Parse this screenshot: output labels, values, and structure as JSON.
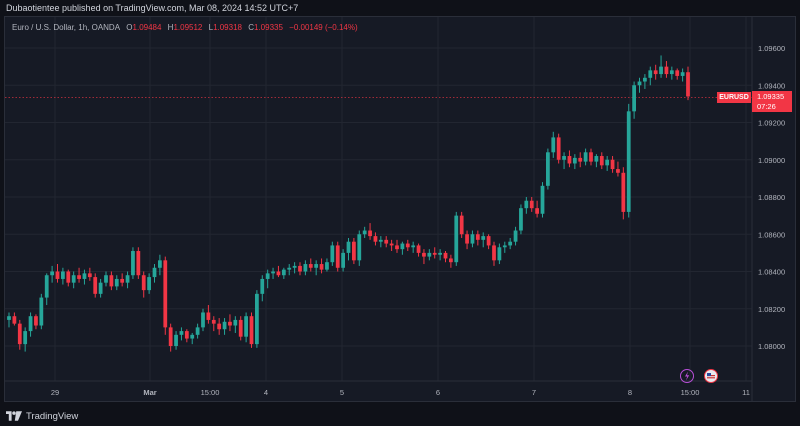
{
  "header": {
    "published_text": "Dubaotientee published on TradingView.com, Mar 08, 2024 14:52 UTC+7"
  },
  "legend": {
    "symbol_text": "Euro / U.S. Dollar, 1h, OANDA",
    "open_label": "O",
    "open_value": "1.09484",
    "high_label": "H",
    "high_value": "1.09512",
    "low_label": "L",
    "low_value": "1.09318",
    "close_label": "C",
    "close_value": "1.09335",
    "change_value": "−0.00149 (−0.14%)"
  },
  "price_tag": {
    "symbol": "EURUSD",
    "price": "1.09335",
    "countdown": "07:26"
  },
  "footer": {
    "brand": "TradingView"
  },
  "colors": {
    "up": "#26a69a",
    "down": "#f23645",
    "grid": "#222631",
    "axis_text": "#b2b5be"
  },
  "icons": [
    "lightning-event-icon",
    "us-flag-event-icon",
    "tradingview-logo-icon"
  ],
  "chart_data": {
    "type": "candlestick",
    "y_ticks": [
      "1.09600",
      "1.09400",
      "1.09200",
      "1.09000",
      "1.08800",
      "1.08600",
      "1.08400",
      "1.08200",
      "1.08000"
    ],
    "ylim": [
      1.079,
      1.097
    ],
    "current_price": 1.09335,
    "x_ticks": [
      "29",
      "Mar",
      "15:00",
      "4",
      "5",
      "6",
      "7",
      "8",
      "15:00",
      "11"
    ],
    "candles": [
      [
        1.0814,
        1.0818,
        1.081,
        1.0816
      ],
      [
        1.0816,
        1.0818,
        1.0811,
        1.0812
      ],
      [
        1.0812,
        1.0814,
        1.0798,
        1.0801
      ],
      [
        1.0801,
        1.081,
        1.0797,
        1.0808
      ],
      [
        1.0808,
        1.0818,
        1.0805,
        1.0816
      ],
      [
        1.0816,
        1.0817,
        1.0809,
        1.0811
      ],
      [
        1.0811,
        1.0828,
        1.0809,
        1.0826
      ],
      [
        1.0826,
        1.0839,
        1.0822,
        1.0838
      ],
      [
        1.0838,
        1.0843,
        1.0834,
        1.084
      ],
      [
        1.084,
        1.0844,
        1.0834,
        1.0836
      ],
      [
        1.0836,
        1.0842,
        1.0833,
        1.084
      ],
      [
        1.084,
        1.0841,
        1.0832,
        1.0834
      ],
      [
        1.0834,
        1.084,
        1.0831,
        1.0838
      ],
      [
        1.0838,
        1.0842,
        1.0834,
        1.0836
      ],
      [
        1.0836,
        1.0841,
        1.0833,
        1.0839
      ],
      [
        1.0839,
        1.0842,
        1.0835,
        1.0837
      ],
      [
        1.0837,
        1.0839,
        1.0826,
        1.0828
      ],
      [
        1.0828,
        1.0836,
        1.0826,
        1.0834
      ],
      [
        1.0834,
        1.084,
        1.0832,
        1.0838
      ],
      [
        1.0838,
        1.084,
        1.083,
        1.0832
      ],
      [
        1.0832,
        1.0838,
        1.083,
        1.0836
      ],
      [
        1.0836,
        1.0839,
        1.0832,
        1.0834
      ],
      [
        1.0834,
        1.084,
        1.0831,
        1.0838
      ],
      [
        1.0838,
        1.0853,
        1.0836,
        1.0851
      ],
      [
        1.0851,
        1.0853,
        1.0836,
        1.0838
      ],
      [
        1.0838,
        1.084,
        1.0826,
        1.083
      ],
      [
        1.083,
        1.0839,
        1.0828,
        1.0837
      ],
      [
        1.0837,
        1.0844,
        1.0834,
        1.0842
      ],
      [
        1.0842,
        1.0849,
        1.0838,
        1.0846
      ],
      [
        1.0846,
        1.0848,
        1.0806,
        1.081
      ],
      [
        1.081,
        1.0812,
        1.0797,
        1.08
      ],
      [
        1.08,
        1.0808,
        1.0798,
        1.0806
      ],
      [
        1.0806,
        1.081,
        1.0803,
        1.0808
      ],
      [
        1.0808,
        1.0809,
        1.0802,
        1.0804
      ],
      [
        1.0804,
        1.0807,
        1.0801,
        1.0806
      ],
      [
        1.0806,
        1.0812,
        1.0804,
        1.081
      ],
      [
        1.081,
        1.082,
        1.0808,
        1.0818
      ],
      [
        1.0818,
        1.0822,
        1.0812,
        1.0814
      ],
      [
        1.0814,
        1.0816,
        1.0808,
        1.0812
      ],
      [
        1.0812,
        1.0815,
        1.0806,
        1.0809
      ],
      [
        1.0809,
        1.0815,
        1.0806,
        1.0813
      ],
      [
        1.0813,
        1.0817,
        1.0808,
        1.0811
      ],
      [
        1.0811,
        1.0816,
        1.0807,
        1.0814
      ],
      [
        1.0814,
        1.0816,
        1.0803,
        1.0805
      ],
      [
        1.0805,
        1.0818,
        1.0802,
        1.0816
      ],
      [
        1.0816,
        1.0818,
        1.0799,
        1.0801
      ],
      [
        1.0801,
        1.083,
        1.0799,
        1.0828
      ],
      [
        1.0828,
        1.0838,
        1.0824,
        1.0836
      ],
      [
        1.0836,
        1.0841,
        1.0831,
        1.0839
      ],
      [
        1.0839,
        1.0842,
        1.0836,
        1.084
      ],
      [
        1.084,
        1.0843,
        1.0837,
        1.0838
      ],
      [
        1.0838,
        1.0842,
        1.0836,
        1.0841
      ],
      [
        1.0841,
        1.0844,
        1.0838,
        1.0842
      ],
      [
        1.0842,
        1.0845,
        1.0839,
        1.0843
      ],
      [
        1.0843,
        1.0845,
        1.0838,
        1.084
      ],
      [
        1.084,
        1.0846,
        1.0838,
        1.0844
      ],
      [
        1.0844,
        1.0847,
        1.084,
        1.0842
      ],
      [
        1.0842,
        1.0846,
        1.0838,
        1.0844
      ],
      [
        1.0844,
        1.0847,
        1.0839,
        1.0841
      ],
      [
        1.0841,
        1.0847,
        1.084,
        1.0845
      ],
      [
        1.0845,
        1.0856,
        1.0843,
        1.0854
      ],
      [
        1.0854,
        1.0856,
        1.084,
        1.0842
      ],
      [
        1.0842,
        1.0852,
        1.084,
        1.085
      ],
      [
        1.085,
        1.0858,
        1.0846,
        1.0856
      ],
      [
        1.0856,
        1.0858,
        1.0844,
        1.0846
      ],
      [
        1.0846,
        1.0862,
        1.0843,
        1.086
      ],
      [
        1.086,
        1.0864,
        1.0858,
        1.0862
      ],
      [
        1.0862,
        1.0866,
        1.0857,
        1.0859
      ],
      [
        1.0859,
        1.0861,
        1.0854,
        1.0856
      ],
      [
        1.0856,
        1.0859,
        1.0853,
        1.0857
      ],
      [
        1.0857,
        1.0859,
        1.0853,
        1.0855
      ],
      [
        1.0855,
        1.0857,
        1.0851,
        1.0854
      ],
      [
        1.0854,
        1.0857,
        1.085,
        1.0852
      ],
      [
        1.0852,
        1.0856,
        1.0849,
        1.0855
      ],
      [
        1.0855,
        1.0857,
        1.0851,
        1.0853
      ],
      [
        1.0853,
        1.0856,
        1.085,
        1.0854
      ],
      [
        1.0854,
        1.0855,
        1.0848,
        1.085
      ],
      [
        1.085,
        1.0852,
        1.0844,
        1.0848
      ],
      [
        1.0848,
        1.0852,
        1.0846,
        1.085
      ],
      [
        1.085,
        1.0853,
        1.0847,
        1.0849
      ],
      [
        1.0849,
        1.0852,
        1.0846,
        1.085
      ],
      [
        1.085,
        1.0851,
        1.0845,
        1.0847
      ],
      [
        1.0847,
        1.0849,
        1.0842,
        1.0845
      ],
      [
        1.0845,
        1.0872,
        1.0843,
        1.087
      ],
      [
        1.087,
        1.0872,
        1.0858,
        1.086
      ],
      [
        1.086,
        1.0862,
        1.0852,
        1.0855
      ],
      [
        1.0855,
        1.0862,
        1.0853,
        1.086
      ],
      [
        1.086,
        1.0862,
        1.0854,
        1.0857
      ],
      [
        1.0857,
        1.0861,
        1.0853,
        1.0859
      ],
      [
        1.0859,
        1.086,
        1.0852,
        1.0854
      ],
      [
        1.0854,
        1.0856,
        1.0843,
        1.0846
      ],
      [
        1.0846,
        1.0855,
        1.0844,
        1.0853
      ],
      [
        1.0853,
        1.0856,
        1.085,
        1.0854
      ],
      [
        1.0854,
        1.0858,
        1.0852,
        1.0856
      ],
      [
        1.0856,
        1.0864,
        1.0854,
        1.0862
      ],
      [
        1.0862,
        1.0876,
        1.086,
        1.0874
      ],
      [
        1.0874,
        1.088,
        1.0871,
        1.0878
      ],
      [
        1.0878,
        1.088,
        1.0872,
        1.0874
      ],
      [
        1.0874,
        1.0878,
        1.0869,
        1.0871
      ],
      [
        1.0871,
        1.0888,
        1.0869,
        1.0886
      ],
      [
        1.0886,
        1.0906,
        1.0884,
        1.0904
      ],
      [
        1.0904,
        1.0915,
        1.0901,
        1.0912
      ],
      [
        1.0912,
        1.0914,
        1.0898,
        1.09
      ],
      [
        1.09,
        1.0904,
        1.0895,
        1.0902
      ],
      [
        1.0902,
        1.0905,
        1.0896,
        1.0898
      ],
      [
        1.0898,
        1.0903,
        1.0895,
        1.0901
      ],
      [
        1.0901,
        1.0904,
        1.0896,
        1.0899
      ],
      [
        1.0899,
        1.0906,
        1.0897,
        1.0904
      ],
      [
        1.0904,
        1.0906,
        1.0897,
        1.0899
      ],
      [
        1.0899,
        1.0903,
        1.0896,
        1.0902
      ],
      [
        1.0902,
        1.0904,
        1.0895,
        1.0897
      ],
      [
        1.0897,
        1.0902,
        1.0894,
        1.09
      ],
      [
        1.09,
        1.0902,
        1.0893,
        1.0895
      ],
      [
        1.0895,
        1.0899,
        1.0891,
        1.0893
      ],
      [
        1.0893,
        1.0896,
        1.0868,
        1.0872
      ],
      [
        1.0872,
        1.093,
        1.0869,
        1.0926
      ],
      [
        1.0926,
        1.0942,
        1.0922,
        1.094
      ],
      [
        1.094,
        1.0944,
        1.0936,
        1.0942
      ],
      [
        1.0942,
        1.0946,
        1.0938,
        1.0944
      ],
      [
        1.0944,
        1.095,
        1.094,
        1.0948
      ],
      [
        1.0948,
        1.0951,
        1.0943,
        1.0946
      ],
      [
        1.0946,
        1.0956,
        1.0944,
        1.095
      ],
      [
        1.095,
        1.0953,
        1.0944,
        1.0946
      ],
      [
        1.0946,
        1.095,
        1.0943,
        1.0948
      ],
      [
        1.0948,
        1.0949,
        1.0943,
        1.0945
      ],
      [
        1.0945,
        1.0949,
        1.0942,
        1.0947
      ],
      [
        1.0947,
        1.095,
        1.0932,
        1.0934
      ]
    ]
  }
}
